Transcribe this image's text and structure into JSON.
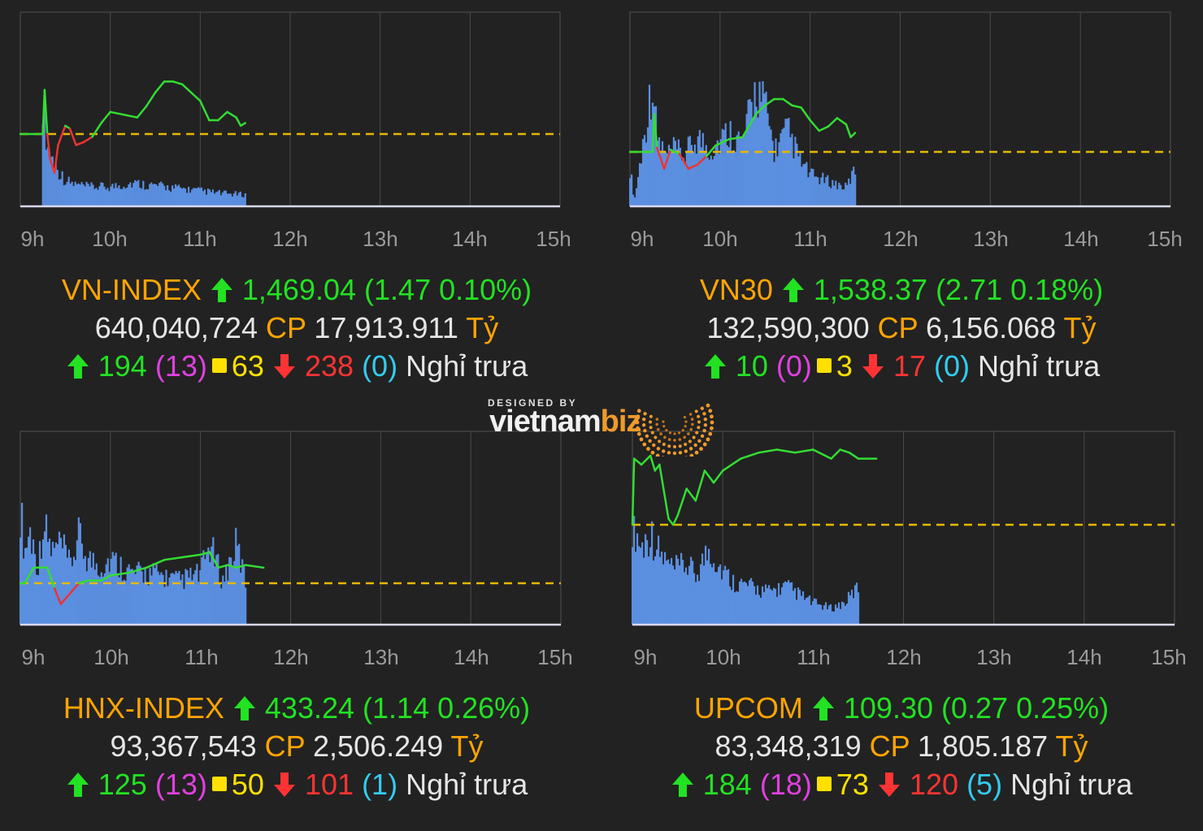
{
  "chart_data": [
    {
      "type": "line",
      "name": "VN-INDEX",
      "x_ticks": [
        "9h",
        "10h",
        "11h",
        "12h",
        "13h",
        "14h",
        "15h"
      ],
      "reference": 1467.57,
      "price_series": [
        [
          9.0,
          0
        ],
        [
          9.25,
          0
        ],
        [
          9.27,
          1.6
        ],
        [
          9.3,
          0
        ],
        [
          9.33,
          -0.9
        ],
        [
          9.38,
          -1.4
        ],
        [
          9.42,
          -0.4
        ],
        [
          9.5,
          0.3
        ],
        [
          9.55,
          0.2
        ],
        [
          9.62,
          -0.4
        ],
        [
          9.7,
          -0.3
        ],
        [
          9.8,
          -0.1
        ],
        [
          9.9,
          0.4
        ],
        [
          10.0,
          0.8
        ],
        [
          10.15,
          0.7
        ],
        [
          10.3,
          0.6
        ],
        [
          10.4,
          1.0
        ],
        [
          10.5,
          1.5
        ],
        [
          10.6,
          1.9
        ],
        [
          10.7,
          1.9
        ],
        [
          10.8,
          1.8
        ],
        [
          10.9,
          1.5
        ],
        [
          11.0,
          1.2
        ],
        [
          11.1,
          0.5
        ],
        [
          11.2,
          0.5
        ],
        [
          11.3,
          0.8
        ],
        [
          11.4,
          0.6
        ],
        [
          11.45,
          0.3
        ],
        [
          11.5,
          0.4
        ]
      ],
      "volume_series": [
        [
          9.25,
          0.85
        ],
        [
          9.3,
          0.45
        ],
        [
          9.4,
          0.3
        ],
        [
          9.5,
          0.2
        ],
        [
          9.6,
          0.17
        ],
        [
          9.75,
          0.15
        ],
        [
          10.0,
          0.15
        ],
        [
          10.25,
          0.18
        ],
        [
          10.5,
          0.16
        ],
        [
          10.75,
          0.14
        ],
        [
          11.0,
          0.12
        ],
        [
          11.25,
          0.1
        ],
        [
          11.5,
          0.09
        ]
      ],
      "index_label": "VN-INDEX",
      "value": "1,469.04",
      "change": "(1.47 0.10%)",
      "volume": "640,040,724",
      "value_traded": "17,913.911",
      "advances": "194",
      "advances_ceiling": "(13)",
      "unchanged": "63",
      "declines": "238",
      "declines_floor": "(0)",
      "status": "Nghỉ trưa"
    },
    {
      "type": "line",
      "name": "VN30",
      "x_ticks": [
        "9h",
        "10h",
        "11h",
        "12h",
        "13h",
        "14h",
        "15h"
      ],
      "reference": 1535.66,
      "price_series": [
        [
          9.0,
          0
        ],
        [
          9.25,
          0
        ],
        [
          9.27,
          1.8
        ],
        [
          9.3,
          0.2
        ],
        [
          9.38,
          -0.8
        ],
        [
          9.45,
          0.1
        ],
        [
          9.55,
          -0.1
        ],
        [
          9.65,
          -0.8
        ],
        [
          9.75,
          -0.6
        ],
        [
          9.85,
          -0.2
        ],
        [
          9.95,
          0.3
        ],
        [
          10.1,
          0.6
        ],
        [
          10.25,
          0.7
        ],
        [
          10.4,
          1.8
        ],
        [
          10.5,
          2.2
        ],
        [
          10.6,
          2.5
        ],
        [
          10.7,
          2.5
        ],
        [
          10.8,
          2.2
        ],
        [
          10.9,
          2.1
        ],
        [
          11.0,
          1.5
        ],
        [
          11.1,
          1.0
        ],
        [
          11.2,
          1.2
        ],
        [
          11.3,
          1.6
        ],
        [
          11.4,
          1.3
        ],
        [
          11.45,
          0.7
        ],
        [
          11.5,
          0.9
        ]
      ],
      "volume_series": [
        [
          9.0,
          0.3
        ],
        [
          9.05,
          0.05
        ],
        [
          9.25,
          1.0
        ],
        [
          9.3,
          0.55
        ],
        [
          9.4,
          0.4
        ],
        [
          9.5,
          0.45
        ],
        [
          9.6,
          0.4
        ],
        [
          9.75,
          0.55
        ],
        [
          9.9,
          0.45
        ],
        [
          10.1,
          0.6
        ],
        [
          10.25,
          0.5
        ],
        [
          10.4,
          0.95
        ],
        [
          10.5,
          0.8
        ],
        [
          10.6,
          0.45
        ],
        [
          10.75,
          0.6
        ],
        [
          10.9,
          0.35
        ],
        [
          11.0,
          0.25
        ],
        [
          11.2,
          0.2
        ],
        [
          11.4,
          0.15
        ],
        [
          11.5,
          0.3
        ]
      ],
      "index_label": "VN30",
      "value": "1,538.37",
      "change": "(2.71 0.18%)",
      "volume": "132,590,300",
      "value_traded": "6,156.068",
      "advances": "10",
      "advances_ceiling": "(0)",
      "unchanged": "3",
      "declines": "17",
      "declines_floor": "(0)",
      "status": "Nghỉ trưa"
    },
    {
      "type": "line",
      "name": "HNX-INDEX",
      "x_ticks": [
        "9h",
        "10h",
        "11h",
        "12h",
        "13h",
        "14h",
        "15h"
      ],
      "reference": 432.1,
      "price_series": [
        [
          9.0,
          0
        ],
        [
          9.05,
          0
        ],
        [
          9.15,
          0.6
        ],
        [
          9.3,
          0.6
        ],
        [
          9.38,
          -0.2
        ],
        [
          9.45,
          -0.8
        ],
        [
          9.55,
          -0.4
        ],
        [
          9.65,
          0
        ],
        [
          9.75,
          0.1
        ],
        [
          9.9,
          0.1
        ],
        [
          10.0,
          0.3
        ],
        [
          10.2,
          0.4
        ],
        [
          10.4,
          0.6
        ],
        [
          10.6,
          0.9
        ],
        [
          10.8,
          1.0
        ],
        [
          11.0,
          1.1
        ],
        [
          11.1,
          1.2
        ],
        [
          11.2,
          0.6
        ],
        [
          11.3,
          0.7
        ],
        [
          11.4,
          0.6
        ],
        [
          11.5,
          0.7
        ],
        [
          11.7,
          0.6
        ]
      ],
      "volume_series": [
        [
          9.0,
          0.8
        ],
        [
          9.05,
          0.5
        ],
        [
          9.1,
          0.65
        ],
        [
          9.2,
          0.4
        ],
        [
          9.25,
          0.7
        ],
        [
          9.35,
          0.5
        ],
        [
          9.45,
          0.55
        ],
        [
          9.55,
          0.4
        ],
        [
          9.65,
          0.6
        ],
        [
          9.75,
          0.45
        ],
        [
          9.9,
          0.4
        ],
        [
          10.0,
          0.45
        ],
        [
          10.25,
          0.35
        ],
        [
          10.5,
          0.35
        ],
        [
          10.75,
          0.3
        ],
        [
          11.0,
          0.35
        ],
        [
          11.1,
          0.55
        ],
        [
          11.25,
          0.3
        ],
        [
          11.4,
          0.55
        ],
        [
          11.5,
          0.3
        ]
      ],
      "index_label": "HNX-INDEX",
      "value": "433.24",
      "change": "(1.14 0.26%)",
      "volume": "93,367,543",
      "value_traded": "2,506.249",
      "advances": "125",
      "advances_ceiling": "(13)",
      "unchanged": "50",
      "declines": "101",
      "declines_floor": "(1)",
      "status": "Nghỉ trưa"
    },
    {
      "type": "line",
      "name": "UPCOM",
      "x_ticks": [
        "9h",
        "10h",
        "11h",
        "12h",
        "13h",
        "14h",
        "15h"
      ],
      "reference": 109.03,
      "price_series": [
        [
          9.0,
          0
        ],
        [
          9.02,
          0.22
        ],
        [
          9.1,
          0.2
        ],
        [
          9.2,
          0.23
        ],
        [
          9.25,
          0.18
        ],
        [
          9.3,
          0.2
        ],
        [
          9.35,
          0.11
        ],
        [
          9.4,
          0.02
        ],
        [
          9.45,
          0
        ],
        [
          9.5,
          0.03
        ],
        [
          9.6,
          0.12
        ],
        [
          9.7,
          0.08
        ],
        [
          9.8,
          0.18
        ],
        [
          9.9,
          0.14
        ],
        [
          10.0,
          0.18
        ],
        [
          10.2,
          0.22
        ],
        [
          10.4,
          0.24
        ],
        [
          10.6,
          0.25
        ],
        [
          10.8,
          0.24
        ],
        [
          11.0,
          0.25
        ],
        [
          11.2,
          0.22
        ],
        [
          11.3,
          0.25
        ],
        [
          11.4,
          0.24
        ],
        [
          11.5,
          0.22
        ],
        [
          11.7,
          0.22
        ]
      ],
      "volume_series": [
        [
          9.0,
          0.95
        ],
        [
          9.1,
          0.7
        ],
        [
          9.2,
          0.85
        ],
        [
          9.3,
          0.65
        ],
        [
          9.45,
          0.5
        ],
        [
          9.6,
          0.55
        ],
        [
          9.7,
          0.45
        ],
        [
          9.85,
          0.7
        ],
        [
          9.95,
          0.55
        ],
        [
          10.1,
          0.4
        ],
        [
          10.3,
          0.35
        ],
        [
          10.5,
          0.3
        ],
        [
          10.7,
          0.35
        ],
        [
          10.9,
          0.25
        ],
        [
          11.0,
          0.2
        ],
        [
          11.2,
          0.15
        ],
        [
          11.35,
          0.2
        ],
        [
          11.5,
          0.35
        ]
      ],
      "index_label": "UPCOM",
      "value": "109.30",
      "change": "(0.27 0.25%)",
      "volume": "83,348,319",
      "value_traded": "1,805.187",
      "advances": "184",
      "advances_ceiling": "(18)",
      "unchanged": "73",
      "declines": "120",
      "declines_floor": "(5)",
      "status": "Nghỉ trưa"
    }
  ],
  "labels": {
    "cp": "CP",
    "ty": "Tỷ"
  },
  "logo": {
    "designed_by": "DESIGNED BY",
    "brand_main": "vietnam",
    "brand_biz": "biz"
  },
  "colors": {
    "background": "#222222",
    "grid": "#4a4a4a",
    "reference_line": "#e6b800",
    "up_line": "#33dd33",
    "down_line": "#ee3333",
    "volume_bar": "#5b8fe0",
    "index_name": "#ffa500"
  }
}
